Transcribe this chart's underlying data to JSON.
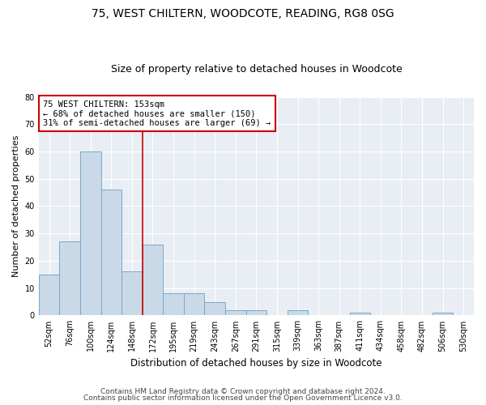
{
  "title1": "75, WEST CHILTERN, WOODCOTE, READING, RG8 0SG",
  "title2": "Size of property relative to detached houses in Woodcote",
  "xlabel": "Distribution of detached houses by size in Woodcote",
  "ylabel": "Number of detached properties",
  "categories": [
    "52sqm",
    "76sqm",
    "100sqm",
    "124sqm",
    "148sqm",
    "172sqm",
    "195sqm",
    "219sqm",
    "243sqm",
    "267sqm",
    "291sqm",
    "315sqm",
    "339sqm",
    "363sqm",
    "387sqm",
    "411sqm",
    "434sqm",
    "458sqm",
    "482sqm",
    "506sqm",
    "530sqm"
  ],
  "values": [
    15,
    27,
    60,
    46,
    16,
    26,
    8,
    8,
    5,
    2,
    2,
    0,
    2,
    0,
    0,
    1,
    0,
    0,
    0,
    1,
    0
  ],
  "bar_color": "#c9d9e8",
  "bar_edge_color": "#7aa8c8",
  "bg_color": "#e8eef4",
  "grid_color": "#ffffff",
  "annotation_text_line1": "75 WEST CHILTERN: 153sqm",
  "annotation_text_line2": "← 68% of detached houses are smaller (150)",
  "annotation_text_line3": "31% of semi-detached houses are larger (69) →",
  "annotation_box_color": "#ffffff",
  "annotation_box_edge_color": "#cc0000",
  "red_line_color": "#cc0000",
  "ylim": [
    0,
    80
  ],
  "yticks": [
    0,
    10,
    20,
    30,
    40,
    50,
    60,
    70,
    80
  ],
  "footnote1": "Contains HM Land Registry data © Crown copyright and database right 2024.",
  "footnote2": "Contains public sector information licensed under the Open Government Licence v3.0.",
  "title1_fontsize": 10,
  "title2_fontsize": 9,
  "xlabel_fontsize": 8.5,
  "ylabel_fontsize": 8,
  "tick_fontsize": 7,
  "annotation_fontsize": 7.5,
  "footnote_fontsize": 6.5
}
